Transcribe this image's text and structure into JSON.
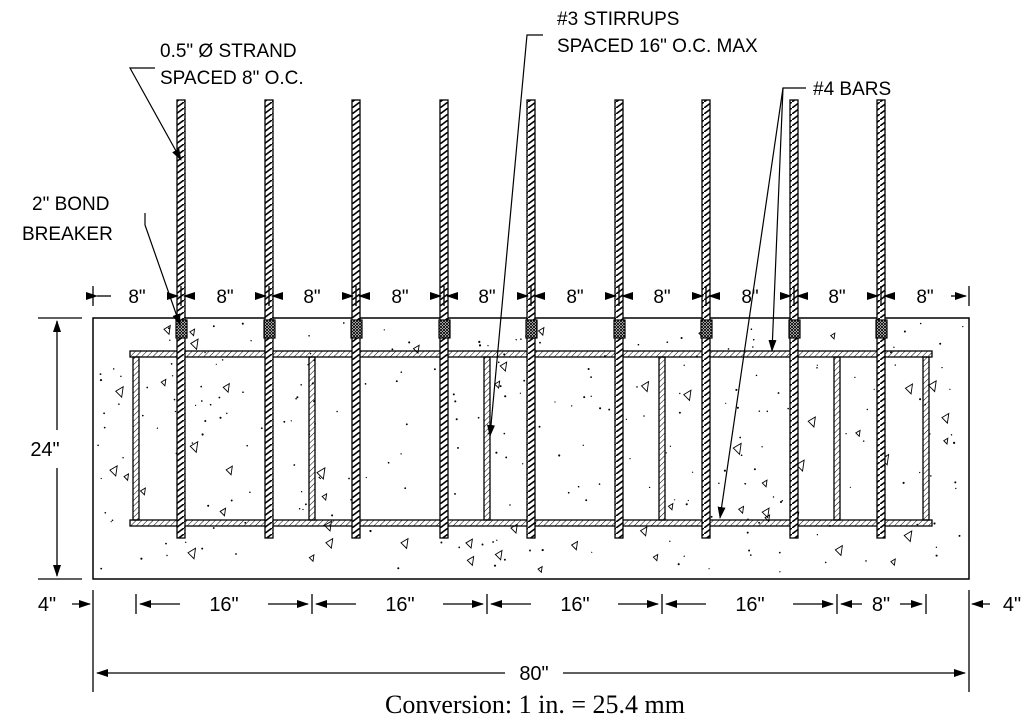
{
  "labels": {
    "strand_line1": "0.5\" Ø STRAND",
    "strand_line2": "SPACED 8\" O.C.",
    "stirrup_line1": "#3 STIRRUPS",
    "stirrup_line2": "SPACED 16\" O.C. MAX",
    "bars": "#4 BARS",
    "bond_line1": "2\" BOND",
    "bond_line2": "BREAKER"
  },
  "dimensions": {
    "top": [
      "8\"",
      "8\"",
      "8\"",
      "8\"",
      "8\"",
      "8\"",
      "8\"",
      "8\"",
      "8\"",
      "8\""
    ],
    "height": "24\"",
    "bottom": [
      "4\"",
      "16\"",
      "16\"",
      "16\"",
      "16\"",
      "8\"",
      "4\""
    ],
    "total": "80\""
  },
  "caption": "Conversion: 1 in. = 25.4 mm",
  "colors": {
    "ink": "#000000",
    "paper": "#ffffff"
  }
}
